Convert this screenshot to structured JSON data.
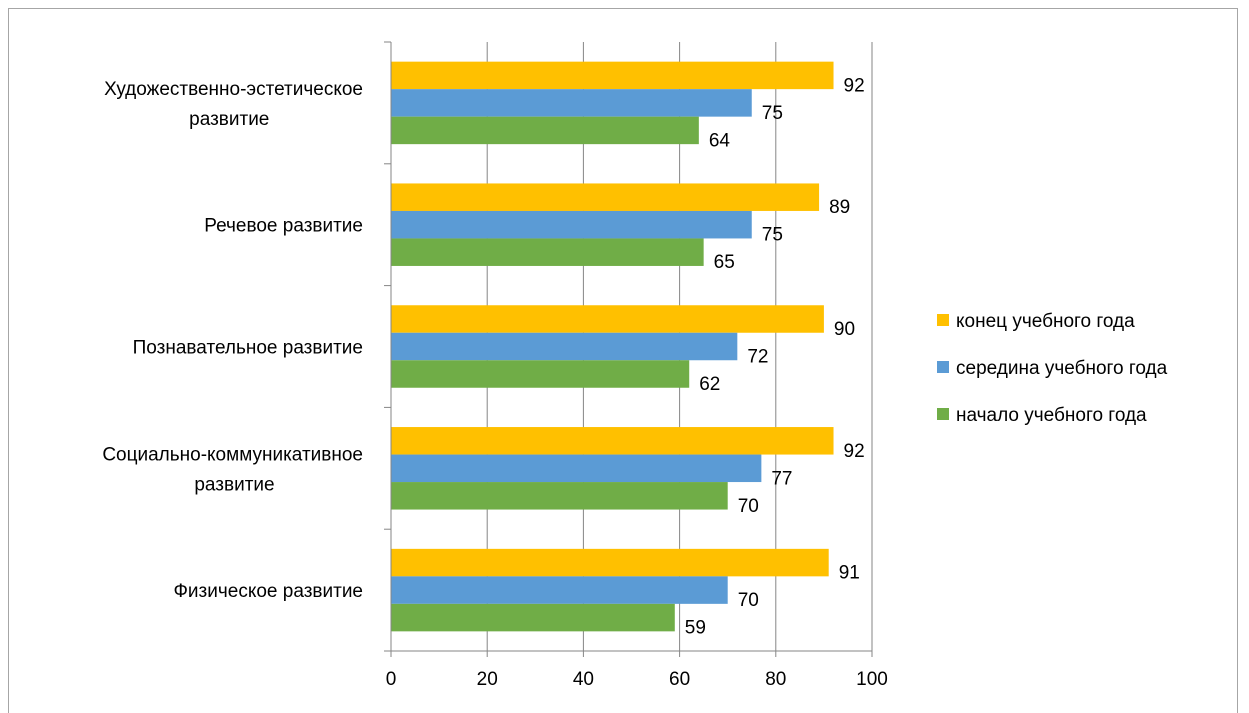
{
  "chart_data": {
    "type": "bar",
    "orientation": "horizontal",
    "categories": [
      "Художественно-эстетическое развитие",
      "Речевое развитие",
      "Познавательное развитие",
      "Социально-коммуникативное развитие",
      "Физическое развитие"
    ],
    "series": [
      {
        "name": "конец учебного года",
        "color": "#ffc000",
        "values": [
          92,
          89,
          90,
          92,
          91
        ]
      },
      {
        "name": "середина учебного года",
        "color": "#5b9bd5",
        "values": [
          75,
          75,
          72,
          77,
          70
        ]
      },
      {
        "name": "начало учебного года",
        "color": "#70ad47",
        "values": [
          64,
          65,
          62,
          70,
          59
        ]
      }
    ],
    "xlim": [
      0,
      100
    ],
    "xticks": [
      0,
      20,
      40,
      60,
      80,
      100
    ],
    "grid": "vertical",
    "legend_position": "right",
    "data_labels": true
  }
}
